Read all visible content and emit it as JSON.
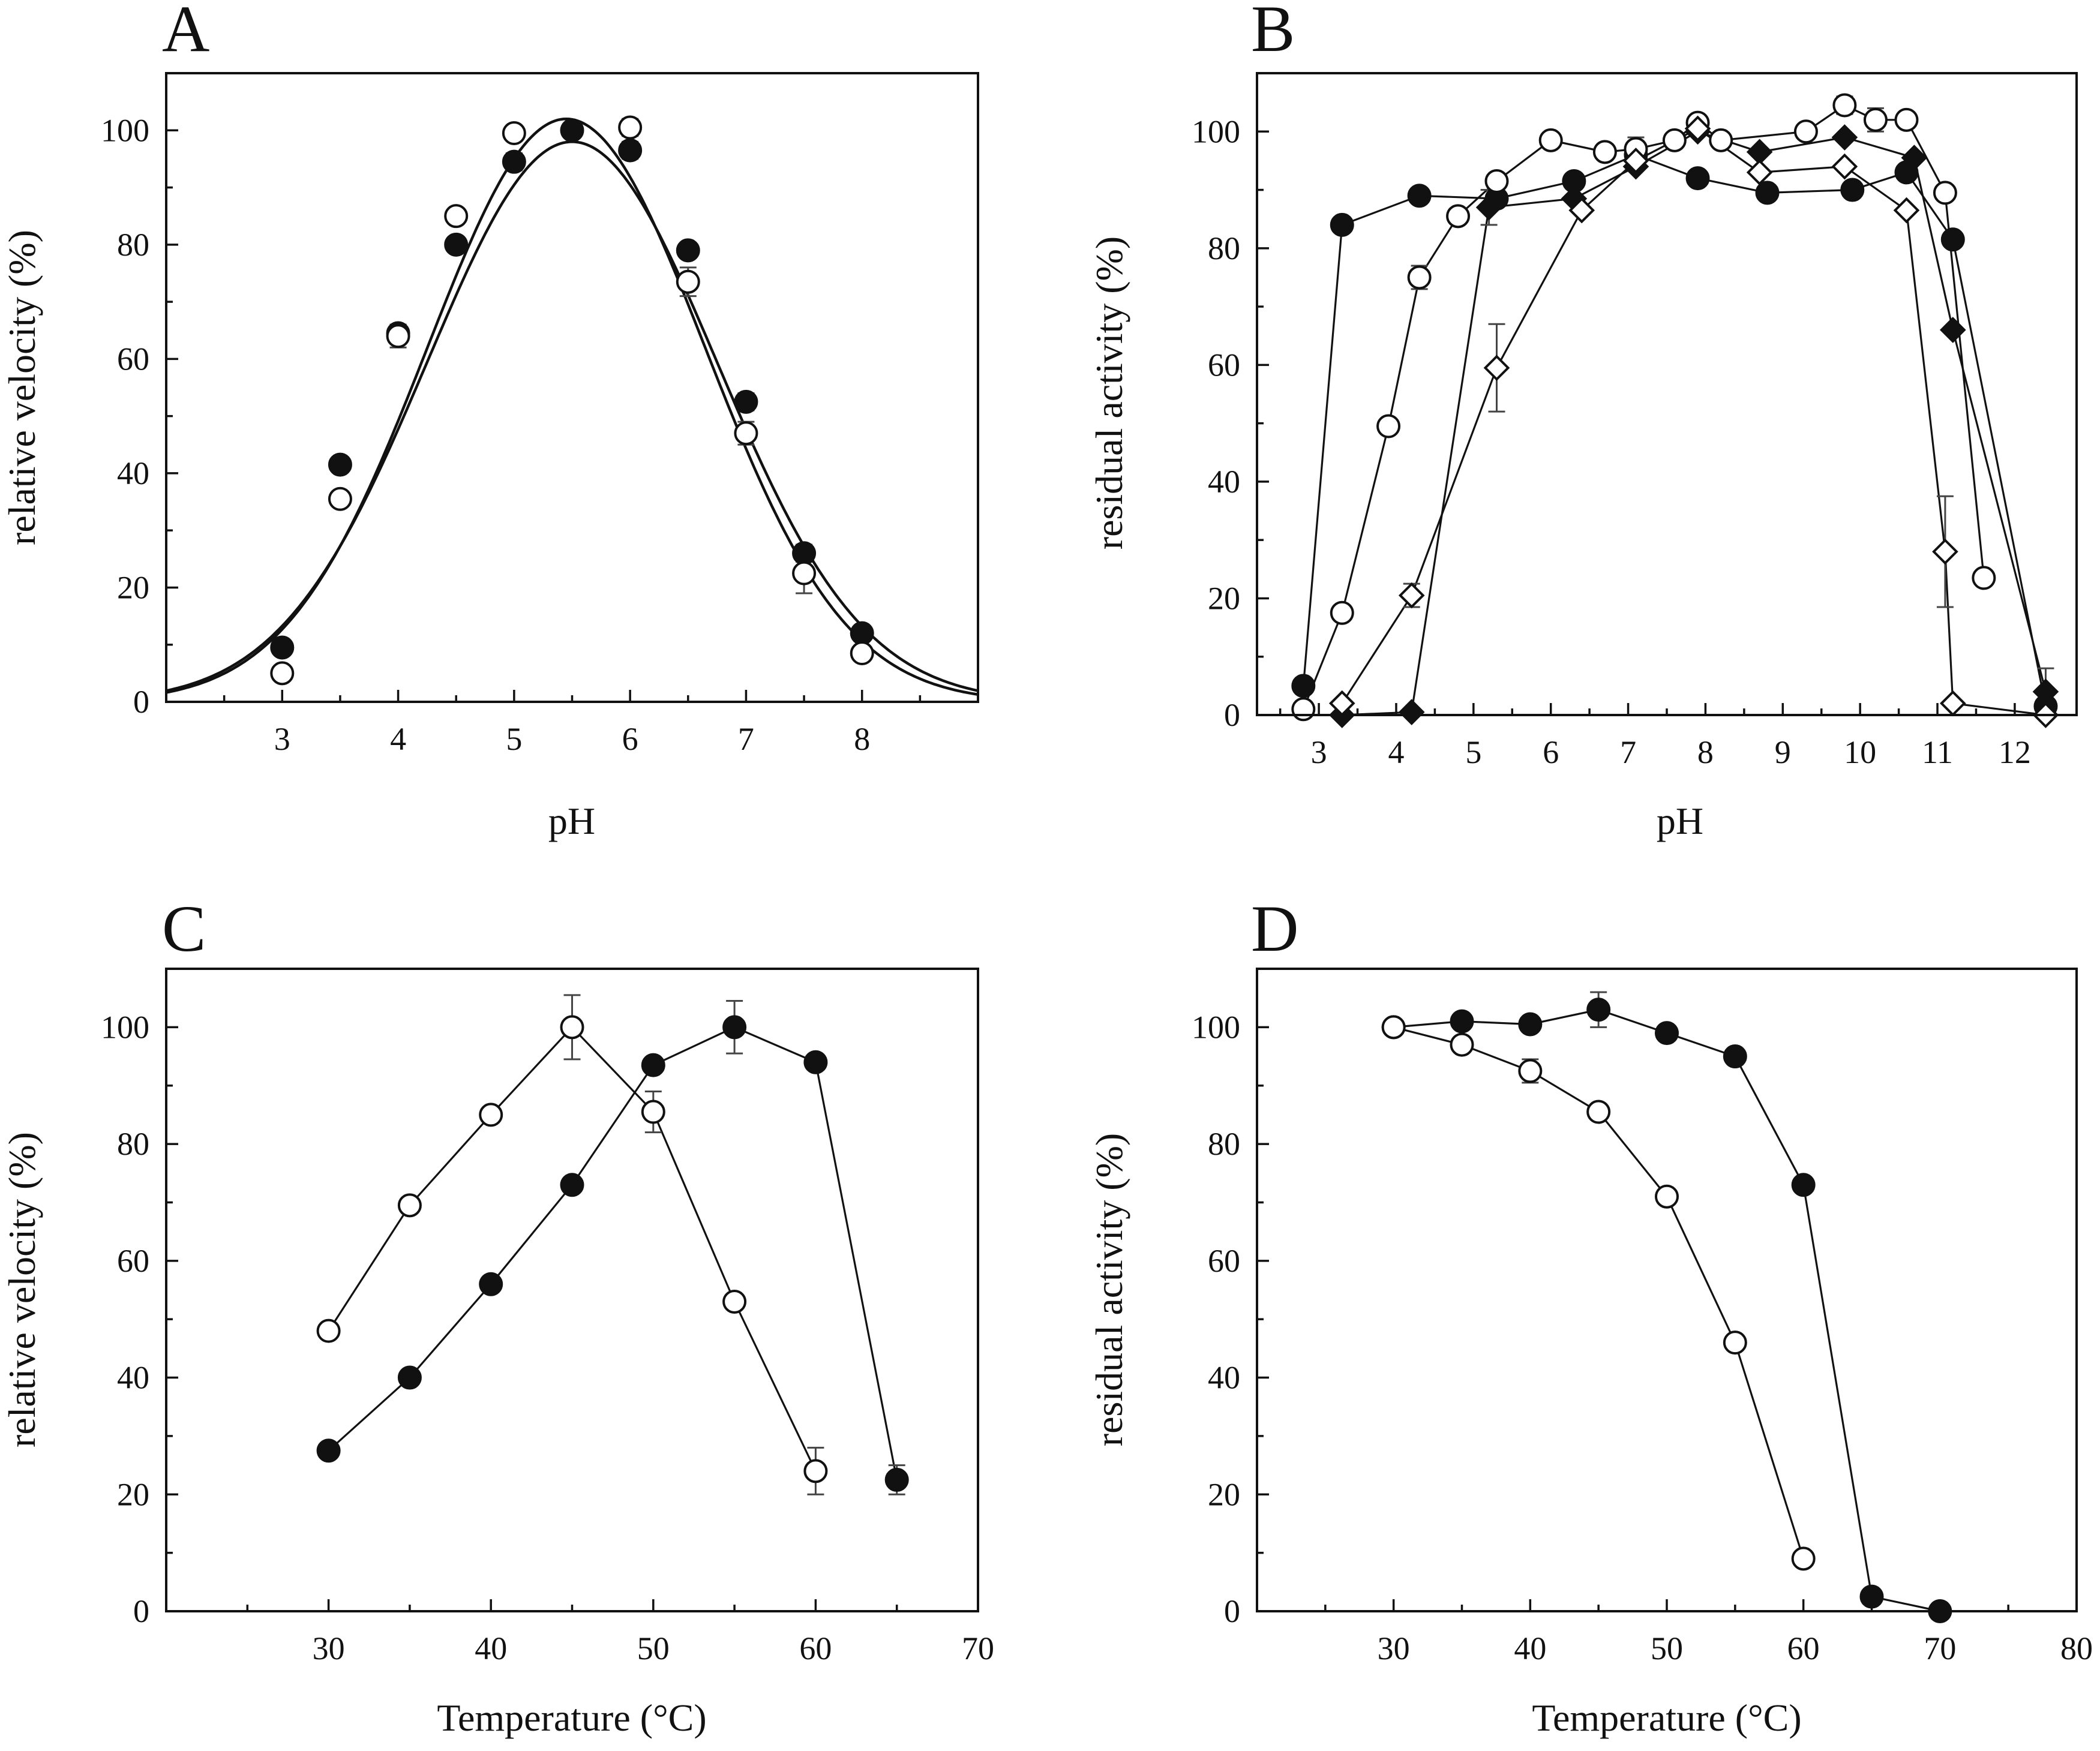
{
  "chart_data": [
    {
      "panel": "A",
      "type": "scatter",
      "xlabel": "pH",
      "ylabel": "relative velocity (%)",
      "xlim": [
        2,
        9
      ],
      "ylim": [
        0,
        110
      ],
      "xticks": [
        3,
        4,
        5,
        6,
        7,
        8
      ],
      "yticks": [
        0,
        20,
        40,
        60,
        80,
        100
      ],
      "series": [
        {
          "name": "filled circles",
          "marker": "circle-filled",
          "connect": false,
          "x": [
            3,
            3.5,
            4,
            4.5,
            5,
            5.5,
            6,
            6.5,
            7,
            7.5,
            8
          ],
          "y": [
            9.5,
            41.5,
            64.5,
            80,
            94.5,
            100,
            96.5,
            79,
            52.5,
            26,
            12
          ],
          "err": [
            1,
            1,
            1.5,
            1,
            1.5,
            1,
            1.5,
            1,
            1.5,
            1.5,
            1
          ]
        },
        {
          "name": "open circles",
          "marker": "circle-open",
          "connect": false,
          "x": [
            3,
            3.5,
            4,
            4.5,
            5,
            6,
            6.5,
            7,
            7.5,
            8
          ],
          "y": [
            5,
            35.5,
            64,
            85,
            99.5,
            100.5,
            73.5,
            47,
            22.5,
            8.5
          ],
          "err": [
            1,
            1,
            2,
            1,
            1,
            1.5,
            2.5,
            2,
            3.5,
            1
          ]
        }
      ],
      "fits": [
        {
          "name": "fit A",
          "peak": 102,
          "pH_opt": 5.45,
          "width": 1.2
        },
        {
          "name": "fit B",
          "peak": 98,
          "pH_opt": 5.5,
          "width": 1.25
        }
      ]
    },
    {
      "panel": "B",
      "type": "line",
      "xlabel": "pH",
      "ylabel": "residual activity (%)",
      "xlim": [
        2.2,
        12.8
      ],
      "ylim": [
        0,
        110
      ],
      "xticks": [
        3,
        4,
        5,
        6,
        7,
        8,
        9,
        10,
        11,
        12
      ],
      "yticks": [
        0,
        20,
        40,
        60,
        80,
        100
      ],
      "series": [
        {
          "name": "filled circles",
          "marker": "circle-filled",
          "connect": true,
          "x": [
            2.8,
            3.3,
            4.3,
            5.3,
            6.3,
            7.1,
            7.9,
            8.8,
            9.9,
            10.6,
            11.2,
            12.4
          ],
          "y": [
            5,
            84,
            89,
            88.5,
            91.5,
            96,
            92,
            89.5,
            90,
            93,
            81.5,
            1.5
          ],
          "err": [
            0,
            0,
            0,
            0,
            0,
            0,
            0,
            0,
            0,
            0,
            0,
            0
          ]
        },
        {
          "name": "open circles",
          "marker": "circle-open",
          "connect": true,
          "x": [
            2.8,
            3.3,
            3.9,
            4.3,
            4.8,
            5.3,
            6,
            6.7,
            7.1,
            7.6,
            7.9,
            8.2,
            9.3,
            9.8,
            10.2,
            10.6,
            11.1,
            11.6
          ],
          "y": [
            1,
            17.5,
            49.5,
            75,
            85.5,
            91.5,
            98.5,
            96.5,
            97,
            98.5,
            101.5,
            98.5,
            100,
            104.5,
            102,
            102,
            89.5,
            23.5
          ],
          "err": [
            0,
            0,
            0,
            2,
            0,
            1,
            0,
            0,
            2,
            0,
            0,
            0,
            0,
            1.5,
            2,
            0,
            0,
            0
          ]
        },
        {
          "name": "filled diamonds",
          "marker": "diamond-filled",
          "connect": true,
          "x": [
            3.3,
            4.2,
            5.2,
            6.3,
            7.1,
            7.9,
            8.7,
            9.8,
            10.7,
            11.2,
            12.4
          ],
          "y": [
            0,
            0.5,
            87,
            88.5,
            94,
            100,
            96.5,
            99,
            95.5,
            66,
            4
          ],
          "err": [
            0,
            0,
            3,
            0,
            0,
            0,
            0,
            0,
            0,
            0,
            4
          ]
        },
        {
          "name": "open diamonds",
          "marker": "diamond-open",
          "connect": true,
          "x": [
            3.3,
            4.2,
            5.3,
            6.4,
            7.1,
            7.9,
            8.7,
            9.8,
            10.6,
            11.1,
            11.2,
            12.4
          ],
          "y": [
            2,
            20.5,
            59.5,
            86.5,
            95,
            100.5,
            93,
            94,
            86.5,
            28,
            2,
            0
          ],
          "err": [
            0,
            2,
            7.5,
            0,
            0,
            0,
            0,
            0,
            0,
            9.5,
            0,
            0
          ]
        }
      ]
    },
    {
      "panel": "C",
      "type": "line",
      "xlabel": "Temperature (°C)",
      "ylabel": "relative velocity (%)",
      "xlim": [
        20,
        70
      ],
      "ylim": [
        0,
        110
      ],
      "xticks": [
        30,
        40,
        50,
        60,
        70
      ],
      "yticks": [
        0,
        20,
        40,
        60,
        80,
        100
      ],
      "series": [
        {
          "name": "open circles",
          "marker": "circle-open",
          "connect": true,
          "x": [
            30,
            35,
            40,
            45,
            50,
            55,
            60
          ],
          "y": [
            48,
            69.5,
            85,
            100,
            85.5,
            53,
            24
          ],
          "err": [
            0,
            0,
            0,
            5.5,
            3.5,
            0,
            4
          ]
        },
        {
          "name": "filled circles",
          "marker": "circle-filled",
          "connect": true,
          "x": [
            30,
            35,
            40,
            45,
            50,
            55,
            60,
            65
          ],
          "y": [
            27.5,
            40,
            56,
            73,
            93.5,
            100,
            94,
            22.5
          ],
          "err": [
            0,
            0,
            0,
            0,
            0,
            4.5,
            0,
            2.5
          ]
        }
      ]
    },
    {
      "panel": "D",
      "type": "line",
      "xlabel": "Temperature (°C)",
      "ylabel": "residual activity (%)",
      "xlim": [
        20,
        80
      ],
      "ylim": [
        0,
        110
      ],
      "xticks": [
        30,
        40,
        50,
        60,
        70,
        80
      ],
      "yticks": [
        0,
        20,
        40,
        60,
        80,
        100
      ],
      "series": [
        {
          "name": "filled circles",
          "marker": "circle-filled",
          "connect": true,
          "x": [
            30,
            35,
            40,
            45,
            50,
            55,
            60,
            65,
            70
          ],
          "y": [
            100,
            101,
            100.5,
            103,
            99,
            95,
            73,
            2.5,
            0
          ],
          "err": [
            0,
            0,
            0,
            3,
            0,
            0,
            0,
            0,
            0
          ]
        },
        {
          "name": "open circles",
          "marker": "circle-open",
          "connect": true,
          "x": [
            30,
            35,
            40,
            45,
            50,
            55,
            60
          ],
          "y": [
            100,
            97,
            92.5,
            85.5,
            71,
            46,
            9
          ],
          "err": [
            0,
            0,
            2,
            0,
            0,
            0,
            0
          ]
        }
      ]
    }
  ]
}
